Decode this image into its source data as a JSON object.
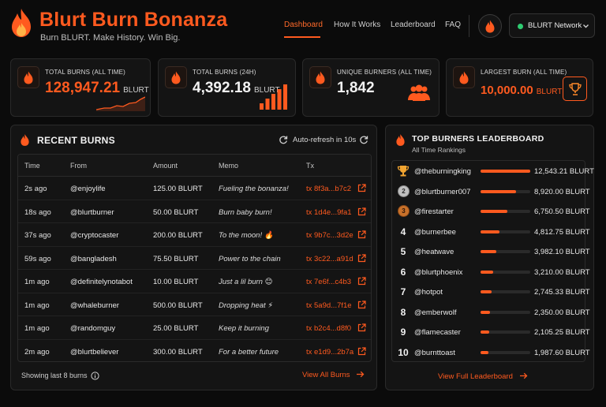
{
  "header": {
    "title": "Blurt Burn Bonanza",
    "tagline": "Burn BLURT. Make History. Win Big.",
    "nav": [
      "Dashboard",
      "How It Works",
      "Leaderboard",
      "FAQ"
    ],
    "network": "BLURT Network"
  },
  "stats": [
    {
      "label": "TOTAL BURNS (ALL TIME)",
      "value": "128,947.21",
      "unit": "BLURT",
      "icon": "flame-icon"
    },
    {
      "label": "TOTAL BURNS (24H)",
      "value": "4,392.18",
      "unit": "BLURT",
      "icon": "flame-icon"
    },
    {
      "label": "UNIQUE BURNERS (ALL TIME)",
      "value": "1,842",
      "unit": "",
      "icon": "users-icon"
    },
    {
      "label": "LARGEST BURN (ALL TIME)",
      "value": "10,000.00",
      "unit": "BLURT",
      "icon": "trophy-icon"
    }
  ],
  "recent": {
    "title": "RECENT BURNS",
    "refresh": "Auto-refresh in 10s",
    "columns": [
      "Time",
      "From",
      "Amount",
      "Memo",
      "Tx"
    ],
    "rows": [
      {
        "time": "2s ago",
        "from": "@enjoylife",
        "amount": "125.00 BLURT",
        "memo": "Fueling the bonanza!",
        "tx": "tx 8f3a...b7c2"
      },
      {
        "time": "18s ago",
        "from": "@blurtburner",
        "amount": "50.00 BLURT",
        "memo": "Burn baby burn!",
        "tx": "tx 1d4e...9fa1"
      },
      {
        "time": "37s ago",
        "from": "@cryptocaster",
        "amount": "200.00 BLURT",
        "memo": "To the moon! 🔥",
        "tx": "tx 9b7c...3d2e"
      },
      {
        "time": "59s ago",
        "from": "@bangladesh",
        "amount": "75.50 BLURT",
        "memo": "Power to the chain",
        "tx": "tx 3c22...a91d"
      },
      {
        "time": "1m ago",
        "from": "@definitelynotabot",
        "amount": "10.00 BLURT",
        "memo": "Just a lil burn 😊",
        "tx": "tx 7e6f...c4b3"
      },
      {
        "time": "1m ago",
        "from": "@whaleburner",
        "amount": "500.00 BLURT",
        "memo": "Dropping heat ⚡",
        "tx": "tx 5a9d...7f1e"
      },
      {
        "time": "1m ago",
        "from": "@randomguy",
        "amount": "25.00 BLURT",
        "memo": "Keep it burning",
        "tx": "tx b2c4...d8f0"
      },
      {
        "time": "2m ago",
        "from": "@blurtbeliever",
        "amount": "300.00 BLURT",
        "memo": "For a better future",
        "tx": "tx e1d9...2b7a"
      }
    ],
    "footer_note": "Showing last 8 burns",
    "view_all": "View All Burns"
  },
  "leaderboard": {
    "title": "TOP BURNERS LEADERBOARD",
    "subtitle": "All Time Rankings",
    "rows": [
      {
        "rank": "1",
        "name": "@theburningking",
        "amount": "12,543.21 BLURT",
        "share": 1.0
      },
      {
        "rank": "2",
        "name": "@blurtburner007",
        "amount": "8,920.00 BLURT",
        "share": 0.711
      },
      {
        "rank": "3",
        "name": "@firestarter",
        "amount": "6,750.50 BLURT",
        "share": 0.538
      },
      {
        "rank": "4",
        "name": "@burnerbee",
        "amount": "4,812.75 BLURT",
        "share": 0.384
      },
      {
        "rank": "5",
        "name": "@heatwave",
        "amount": "3,982.10 BLURT",
        "share": 0.317
      },
      {
        "rank": "6",
        "name": "@blurtphoenix",
        "amount": "3,210.00 BLURT",
        "share": 0.256
      },
      {
        "rank": "7",
        "name": "@hotpot",
        "amount": "2,745.33 BLURT",
        "share": 0.219
      },
      {
        "rank": "8",
        "name": "@emberwolf",
        "amount": "2,350.00 BLURT",
        "share": 0.187
      },
      {
        "rank": "9",
        "name": "@flamecaster",
        "amount": "2,105.25 BLURT",
        "share": 0.168
      },
      {
        "rank": "10",
        "name": "@burnttoast",
        "amount": "1,987.60 BLURT",
        "share": 0.158
      }
    ],
    "view_full": "View Full Leaderboard"
  },
  "colors": {
    "accent": "#ff5a1f",
    "online": "#2ecc71"
  }
}
